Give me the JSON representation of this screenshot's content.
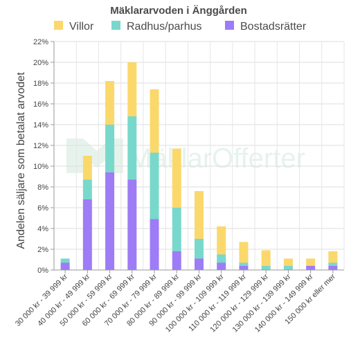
{
  "chart_data": {
    "type": "bar",
    "stacked": true,
    "title": "Mäklararvoden i Änggården",
    "ylabel": "Andelen säljare som betalat arvodet",
    "xlabel": "",
    "ylim": [
      0,
      22
    ],
    "yticks": [
      "0%",
      "2%",
      "4%",
      "6%",
      "8%",
      "10%",
      "12%",
      "14%",
      "16%",
      "18%",
      "20%",
      "22%"
    ],
    "grid": true,
    "legend_position": "top",
    "watermark": "MäklarOfferter",
    "categories": [
      "30 000 kr - 39 999 kr",
      "40 000 kr - 49 999 kr",
      "50 000 kr - 59 999 kr",
      "60 000 kr - 69 999 kr",
      "70 000 kr - 79 999 kr",
      "80 000 kr - 89 999 kr",
      "90 000 kr - 99 999 kr",
      "100 000 kr - 109 999 kr",
      "110 000 kr - 119 999 kr",
      "120 000 kr - 129 999 kr",
      "130 000 kr - 139 999 kr",
      "140 000 kr - 149 999 kr",
      "150 000 kr eller mer"
    ],
    "series": [
      {
        "name": "Bostadsrätter",
        "color": "#9d7cf6",
        "values": [
          0.7,
          6.8,
          9.4,
          8.7,
          4.9,
          1.8,
          1.1,
          0.7,
          0.4,
          0.0,
          0.0,
          0.4,
          0.4
        ]
      },
      {
        "name": "Radhus/parhus",
        "color": "#79d8cc",
        "values": [
          0.4,
          1.9,
          4.6,
          6.1,
          6.4,
          4.2,
          1.9,
          0.8,
          0.3,
          0.4,
          0.4,
          0.0,
          0.3
        ]
      },
      {
        "name": "Villor",
        "color": "#fbd86c",
        "values": [
          0.0,
          2.3,
          4.2,
          5.2,
          6.1,
          5.7,
          4.6,
          2.7,
          2.0,
          1.5,
          0.7,
          0.7,
          1.1
        ]
      }
    ],
    "legend_order": [
      "Villor",
      "Radhus/parhus",
      "Bostadsrätter"
    ]
  }
}
